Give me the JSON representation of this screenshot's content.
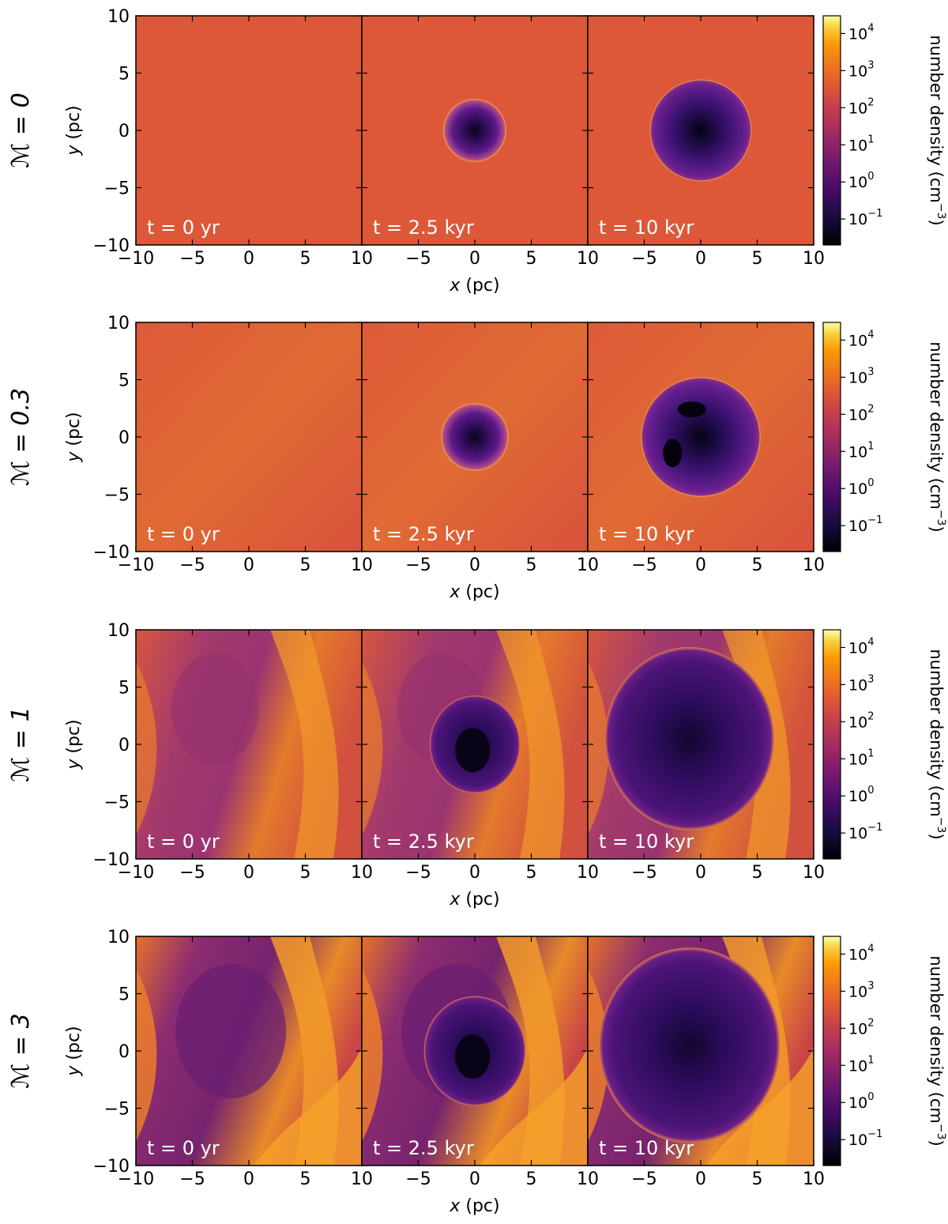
{
  "chart_data": {
    "type": "heatmap",
    "quantity_label": "number density (cm",
    "quantity_unit_exp": "−3",
    "quantity_label_close": ")",
    "colormap": "inferno",
    "color_scale": "log",
    "color_range": [
      0.02,
      30000
    ],
    "colorbar_ticks": [
      {
        "base": "10",
        "exp": "4",
        "value": 10000
      },
      {
        "base": "10",
        "exp": "3",
        "value": 1000
      },
      {
        "base": "10",
        "exp": "2",
        "value": 100
      },
      {
        "base": "10",
        "exp": "1",
        "value": 10
      },
      {
        "base": "10",
        "exp": "0",
        "value": 1
      },
      {
        "base": "10",
        "exp": "−1",
        "value": 0.1
      }
    ],
    "xlabel_var": "x",
    "xlabel_unit": " (pc)",
    "ylabel_var": "y",
    "ylabel_unit": " (pc)",
    "xlim": [
      -10,
      10
    ],
    "ylim": [
      -10,
      10
    ],
    "x_tick_labels": [
      "−10",
      "−5",
      "0",
      "5",
      "10"
    ],
    "y_tick_labels": [
      "10",
      "5",
      "0",
      "−5",
      "−10"
    ],
    "time_labels": [
      "t = 0 yr",
      "t = 2.5 kyr",
      "t = 10 kyr"
    ],
    "rows": [
      {
        "mach_label": "ℳ = 0",
        "mach": 0,
        "ambient_density": 100,
        "panels": [
          {
            "time": "0 yr",
            "bubble_radius_pc": 0,
            "interior_density": null
          },
          {
            "time": "2.5 kyr",
            "bubble_radius_pc": 2.8,
            "interior_density": 0.1
          },
          {
            "time": "10 kyr",
            "bubble_radius_pc": 4.5,
            "interior_density": 0.05
          }
        ]
      },
      {
        "mach_label": "ℳ = 0.3",
        "mach": 0.3,
        "ambient_density": 100,
        "panels": [
          {
            "time": "0 yr",
            "bubble_radius_pc": 0,
            "interior_density": null
          },
          {
            "time": "2.5 kyr",
            "bubble_radius_pc": 3.0,
            "interior_density": 0.1
          },
          {
            "time": "10 kyr",
            "bubble_radius_pc": 5.3,
            "interior_density": 0.05
          }
        ]
      },
      {
        "mach_label": "ℳ = 1",
        "mach": 1,
        "ambient_density": 30,
        "panels": [
          {
            "time": "0 yr",
            "bubble_radius_pc": 0,
            "interior_density": null
          },
          {
            "time": "2.5 kyr",
            "bubble_radius_pc": 4.0,
            "interior_density": 0.3
          },
          {
            "time": "10 kyr",
            "bubble_radius_pc": 7.5,
            "interior_density": 1
          }
        ]
      },
      {
        "mach_label": "ℳ = 3",
        "mach": 3,
        "ambient_density": 10,
        "panels": [
          {
            "time": "0 yr",
            "bubble_radius_pc": 0,
            "interior_density": null
          },
          {
            "time": "2.5 kyr",
            "bubble_radius_pc": 4.5,
            "interior_density": 0.2
          },
          {
            "time": "10 kyr",
            "bubble_radius_pc": 8.0,
            "interior_density": 1
          }
        ]
      }
    ]
  }
}
